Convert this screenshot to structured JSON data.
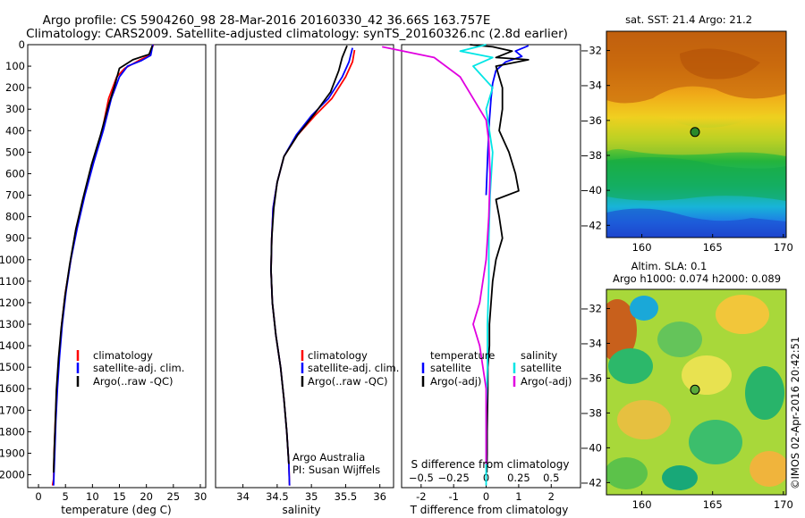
{
  "title_line1": "Argo profile: CS 5904260_98 28-Mar-2016 20160330_42 36.66S 163.757E",
  "title_line2": "Climatology: CARS2009. Satellite-adjusted climatology: synTS_20160326.nc (2.8d earlier)",
  "credit": "Argo Australia",
  "pi": "PI: Susan Wijffels",
  "watermark": "©IMOS 02-Apr-2016 20:42:51",
  "colors": {
    "climatology": "#ff0000",
    "satellite": "#0000ff",
    "argo": "#000000",
    "sal_satellite": "#00e5e5",
    "sal_argo": "#e000e0"
  },
  "chart_data": [
    {
      "type": "line",
      "panel": "temperature",
      "xlabel": "temperature (deg C)",
      "xlim": [
        -2,
        31
      ],
      "xticks": [
        0,
        5,
        10,
        15,
        20,
        25,
        30
      ],
      "ylim": [
        2060,
        0
      ],
      "yticks": [
        0,
        100,
        200,
        300,
        400,
        500,
        600,
        700,
        800,
        900,
        1000,
        1100,
        1200,
        1300,
        1400,
        1500,
        1600,
        1700,
        1800,
        1900,
        2000
      ],
      "legend": [
        "climatology",
        "satellite-adj. clim.",
        "Argo(..raw -QC)"
      ],
      "series": [
        {
          "name": "climatology",
          "color": "#ff0000",
          "points": [
            [
              21.3,
              0
            ],
            [
              20.5,
              50
            ],
            [
              18.5,
              75
            ],
            [
              16,
              110
            ],
            [
              14.5,
              150
            ],
            [
              13,
              250
            ],
            [
              11.8,
              400
            ],
            [
              10,
              550
            ],
            [
              8.5,
              700
            ],
            [
              7,
              850
            ],
            [
              6,
              1000
            ],
            [
              5,
              1150
            ],
            [
              4.3,
              1300
            ],
            [
              3.8,
              1450
            ],
            [
              3.4,
              1600
            ],
            [
              3.1,
              1750
            ],
            [
              2.9,
              1900
            ],
            [
              2.8,
              2020
            ],
            [
              2.6,
              2050
            ]
          ]
        },
        {
          "name": "satellite-adj. clim.",
          "color": "#0000ff",
          "points": [
            [
              21.2,
              0
            ],
            [
              20.8,
              50
            ],
            [
              19,
              75
            ],
            [
              16.5,
              100
            ],
            [
              15,
              150
            ],
            [
              13.5,
              250
            ],
            [
              12,
              400
            ],
            [
              10.2,
              550
            ],
            [
              8.6,
              700
            ],
            [
              7.2,
              850
            ],
            [
              6,
              1000
            ],
            [
              5.1,
              1150
            ],
            [
              4.4,
              1300
            ],
            [
              3.9,
              1450
            ],
            [
              3.5,
              1600
            ],
            [
              3.2,
              1750
            ],
            [
              3,
              1900
            ],
            [
              2.8,
              2050
            ]
          ]
        },
        {
          "name": "Argo(..raw -QC)",
          "color": "#000000",
          "points": [
            [
              21.1,
              5
            ],
            [
              20.5,
              45
            ],
            [
              17.5,
              70
            ],
            [
              15,
              110
            ],
            [
              14,
              200
            ],
            [
              13,
              280
            ],
            [
              11.5,
              420
            ],
            [
              9.8,
              560
            ],
            [
              8.2,
              720
            ],
            [
              6.9,
              860
            ],
            [
              5.8,
              1020
            ],
            [
              4.9,
              1170
            ],
            [
              4.2,
              1320
            ],
            [
              3.7,
              1460
            ],
            [
              3.3,
              1610
            ],
            [
              3.1,
              1760
            ],
            [
              2.9,
              1900
            ],
            [
              2.8,
              1990
            ]
          ]
        }
      ]
    },
    {
      "type": "line",
      "panel": "salinity",
      "xlabel": "salinity",
      "xlim": [
        33.6,
        36.2
      ],
      "xticks": [
        34,
        34.5,
        35,
        35.5,
        36
      ],
      "xticklabels": [
        "34",
        "34.5",
        "35",
        "35.5",
        "36"
      ],
      "ylim": [
        2060,
        0
      ],
      "legend": [
        "climatology",
        "satellite-adj. clim.",
        "Argo(..raw -QC)"
      ],
      "series": [
        {
          "name": "climatology",
          "color": "#ff0000",
          "points": [
            [
              35.63,
              25
            ],
            [
              35.6,
              80
            ],
            [
              35.5,
              150
            ],
            [
              35.3,
              250
            ],
            [
              35.05,
              330
            ],
            [
              34.8,
              420
            ],
            [
              34.6,
              520
            ],
            [
              34.5,
              640
            ],
            [
              34.44,
              760
            ],
            [
              34.42,
              900
            ],
            [
              34.41,
              1050
            ],
            [
              34.43,
              1200
            ],
            [
              34.48,
              1350
            ],
            [
              34.55,
              1500
            ],
            [
              34.6,
              1650
            ],
            [
              34.64,
              1800
            ],
            [
              34.67,
              1950
            ],
            [
              34.68,
              2050
            ]
          ]
        },
        {
          "name": "satellite-adj. clim.",
          "color": "#0000ff",
          "points": [
            [
              35.6,
              15
            ],
            [
              35.55,
              80
            ],
            [
              35.45,
              150
            ],
            [
              35.25,
              250
            ],
            [
              35.0,
              330
            ],
            [
              34.78,
              420
            ],
            [
              34.6,
              520
            ],
            [
              34.5,
              640
            ],
            [
              34.44,
              760
            ],
            [
              34.42,
              900
            ],
            [
              34.41,
              1050
            ],
            [
              34.43,
              1200
            ],
            [
              34.48,
              1350
            ],
            [
              34.55,
              1500
            ],
            [
              34.6,
              1650
            ],
            [
              34.64,
              1800
            ],
            [
              34.67,
              1950
            ],
            [
              34.68,
              2050
            ]
          ]
        },
        {
          "name": "Argo(..raw -QC)",
          "color": "#000000",
          "points": [
            [
              35.52,
              5
            ],
            [
              35.45,
              60
            ],
            [
              35.4,
              120
            ],
            [
              35.28,
              220
            ],
            [
              35.05,
              320
            ],
            [
              34.8,
              420
            ],
            [
              34.6,
              520
            ],
            [
              34.5,
              640
            ],
            [
              34.45,
              760
            ],
            [
              34.42,
              900
            ],
            [
              34.41,
              1050
            ],
            [
              34.43,
              1200
            ],
            [
              34.48,
              1350
            ],
            [
              34.55,
              1500
            ],
            [
              34.6,
              1650
            ],
            [
              34.64,
              1800
            ],
            [
              34.67,
              1950
            ]
          ]
        }
      ]
    },
    {
      "type": "line",
      "panel": "difference",
      "xlabel": "T difference from climatology",
      "xlabel_top": "S difference from climatology",
      "xlim": [
        -2.6,
        2.9
      ],
      "xticks": [
        -2,
        -1,
        0,
        1,
        2
      ],
      "xticks_top": [
        -0.5,
        -0.25,
        0,
        0.25,
        0.5
      ],
      "xticks_top_labels": [
        "−0.5",
        "−0.25",
        "0",
        "0.25",
        "0.5"
      ],
      "legend_temperature_heading": "temperature",
      "legend_salinity_heading": "salinity",
      "legend_temperature": [
        "satellite",
        "Argo(-adj)"
      ],
      "legend_salinity": [
        "satellite",
        "Argo(-adj)"
      ],
      "series": [
        {
          "name": "T satellite",
          "color": "#0000ff",
          "points": [
            [
              1.3,
              5
            ],
            [
              0.9,
              30
            ],
            [
              1.1,
              55
            ],
            [
              0.6,
              80
            ],
            [
              0.3,
              120
            ],
            [
              0.2,
              180
            ],
            [
              0.15,
              250
            ],
            [
              0.1,
              350
            ],
            [
              0.05,
              500
            ],
            [
              0,
              700
            ]
          ]
        },
        {
          "name": "T Argo(-adj)",
          "color": "#000000",
          "points": [
            [
              -0.5,
              0
            ],
            [
              0.2,
              10
            ],
            [
              0.8,
              30
            ],
            [
              0.3,
              60
            ],
            [
              1.3,
              70
            ],
            [
              0.3,
              100
            ],
            [
              0.5,
              200
            ],
            [
              0.5,
              300
            ],
            [
              0.4,
              400
            ],
            [
              0.7,
              500
            ],
            [
              0.9,
              600
            ],
            [
              1.0,
              680
            ],
            [
              0.3,
              720
            ],
            [
              0.4,
              800
            ],
            [
              0.5,
              900
            ],
            [
              0.3,
              1000
            ],
            [
              0.2,
              1100
            ],
            [
              0.15,
              1200
            ],
            [
              0.1,
              1300
            ],
            [
              0.1,
              1400
            ],
            [
              0.05,
              1500
            ],
            [
              0.05,
              1600
            ],
            [
              0.04,
              1700
            ],
            [
              0.03,
              1800
            ],
            [
              0.03,
              1900
            ],
            [
              0.02,
              1990
            ]
          ]
        },
        {
          "name": "S satellite",
          "color": "#00e5e5",
          "points": [
            [
              0,
              0
            ],
            [
              -0.2,
              30
            ],
            [
              0.05,
              60
            ],
            [
              -0.1,
              100
            ],
            [
              0.05,
              200
            ],
            [
              0,
              300
            ],
            [
              0.05,
              500
            ],
            [
              0.03,
              700
            ],
            [
              0.02,
              900
            ],
            [
              0.02,
              1100
            ],
            [
              0.01,
              1300
            ],
            [
              0.01,
              1500
            ],
            [
              0,
              1700
            ],
            [
              0,
              1900
            ],
            [
              0,
              2050
            ]
          ]
        },
        {
          "name": "S Argo(-adj)",
          "color": "#e000e0",
          "points": [
            [
              -0.8,
              10
            ],
            [
              -0.4,
              60
            ],
            [
              -0.2,
              150
            ],
            [
              -0.1,
              250
            ],
            [
              0,
              350
            ],
            [
              0.02,
              450
            ],
            [
              0.03,
              600
            ],
            [
              0.02,
              800
            ],
            [
              0,
              1000
            ],
            [
              -0.05,
              1200
            ],
            [
              -0.1,
              1300
            ],
            [
              -0.05,
              1400
            ],
            [
              0,
              1600
            ],
            [
              0,
              1800
            ],
            [
              0,
              1950
            ]
          ]
        }
      ]
    },
    {
      "type": "heatmap",
      "panel": "sst_map",
      "title": "sat. SST: 21.4  Argo: 21.2",
      "xticks": [
        160,
        165,
        170
      ],
      "yticks": [
        -32,
        -34,
        -36,
        -38,
        -40,
        -42
      ],
      "xlim": [
        157.5,
        170.2
      ],
      "ylim": [
        -42.7,
        -30.9
      ],
      "argo_position": [
        163.757,
        -36.66
      ]
    },
    {
      "type": "heatmap",
      "panel": "sla_map",
      "title": "Altim. SLA: 0.1",
      "subtitle": "Argo h1000: 0.074  h2000: 0.089",
      "xticks": [
        160,
        165,
        170
      ],
      "yticks": [
        -32,
        -34,
        -36,
        -38,
        -40,
        -42
      ],
      "xlim": [
        157.5,
        170.2
      ],
      "ylim": [
        -42.7,
        -30.9
      ],
      "argo_position": [
        163.757,
        -36.66
      ]
    }
  ]
}
